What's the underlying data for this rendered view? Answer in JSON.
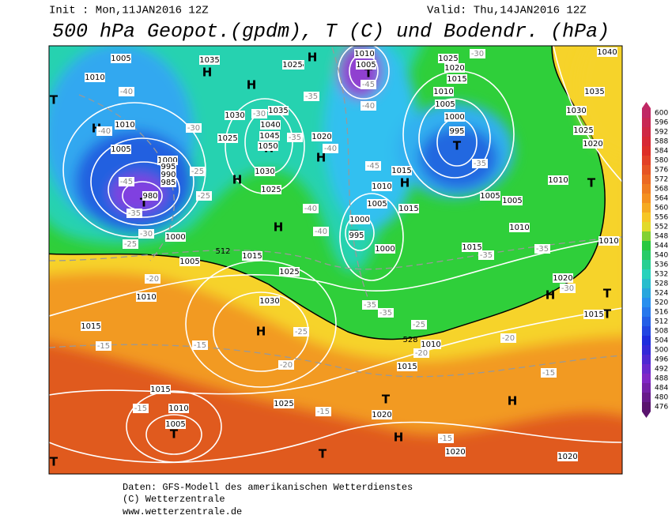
{
  "header": {
    "init": "Init : Mon,11JAN2016 12Z",
    "valid": "Valid: Thu,14JAN2016 12Z",
    "title": "500 hPa Geopot.(gpdm), T (C) und Bodendr. (hPa)"
  },
  "colorbar": {
    "ticks": [
      600,
      596,
      592,
      588,
      584,
      580,
      576,
      572,
      568,
      564,
      560,
      556,
      552,
      548,
      544,
      540,
      536,
      532,
      528,
      524,
      520,
      516,
      512,
      508,
      504,
      500,
      496,
      492,
      488,
      484,
      480,
      476
    ]
  },
  "map": {
    "pressure_centers": [
      "T",
      "H",
      "H",
      "H",
      "H",
      "T",
      "H",
      "H",
      "H",
      "T",
      "H",
      "T",
      "T",
      "H",
      "T",
      "H",
      "H",
      "T",
      "T",
      "H",
      "T",
      "H",
      "T",
      "T",
      "T"
    ],
    "isobar_labels": [
      "1005",
      "1010",
      "1035",
      "1025",
      "1025",
      "1010",
      "1005",
      "1025",
      "1020",
      "1015",
      "1040",
      "1010",
      "1005",
      "1000",
      "995",
      "1030",
      "1035",
      "1025",
      "1020",
      "1010",
      "1005",
      "1000",
      "995",
      "990",
      "985",
      "980",
      "1000",
      "1030",
      "1035",
      "1040",
      "1045",
      "1050",
      "1030",
      "1025",
      "1025",
      "1020",
      "1015",
      "1010",
      "1005",
      "1015",
      "1000",
      "995",
      "1000",
      "1005",
      "1005",
      "1010",
      "1010",
      "1010",
      "1015",
      "1015",
      "1005",
      "1025",
      "1030",
      "1010",
      "1015",
      "1020",
      "1015",
      "1010",
      "1015",
      "1015",
      "1010",
      "1005",
      "1025",
      "1020",
      "1020",
      "1020"
    ],
    "temperature_labels": [
      "-40",
      "-30",
      "-25",
      "-25",
      "-35",
      "-30",
      "-25",
      "-20",
      "-15",
      "-15",
      "-20",
      "-25",
      "-15",
      "-15",
      "-15",
      "-15",
      "-20",
      "-35",
      "-35",
      "-35",
      "-30",
      "-40",
      "-45",
      "-45",
      "-40",
      "-40",
      "-40",
      "-35",
      "-35",
      "-25",
      "-20",
      "-30",
      "-35",
      "-30",
      "-35",
      "-40",
      "-45"
    ],
    "height_labels": [
      "512",
      "528"
    ]
  },
  "footer": {
    "line1": "Daten: GFS-Modell des amerikanischen Wetterdienstes",
    "line2": "(C) Wetterzentrale",
    "line3": "www.wetterzentrale.de"
  }
}
